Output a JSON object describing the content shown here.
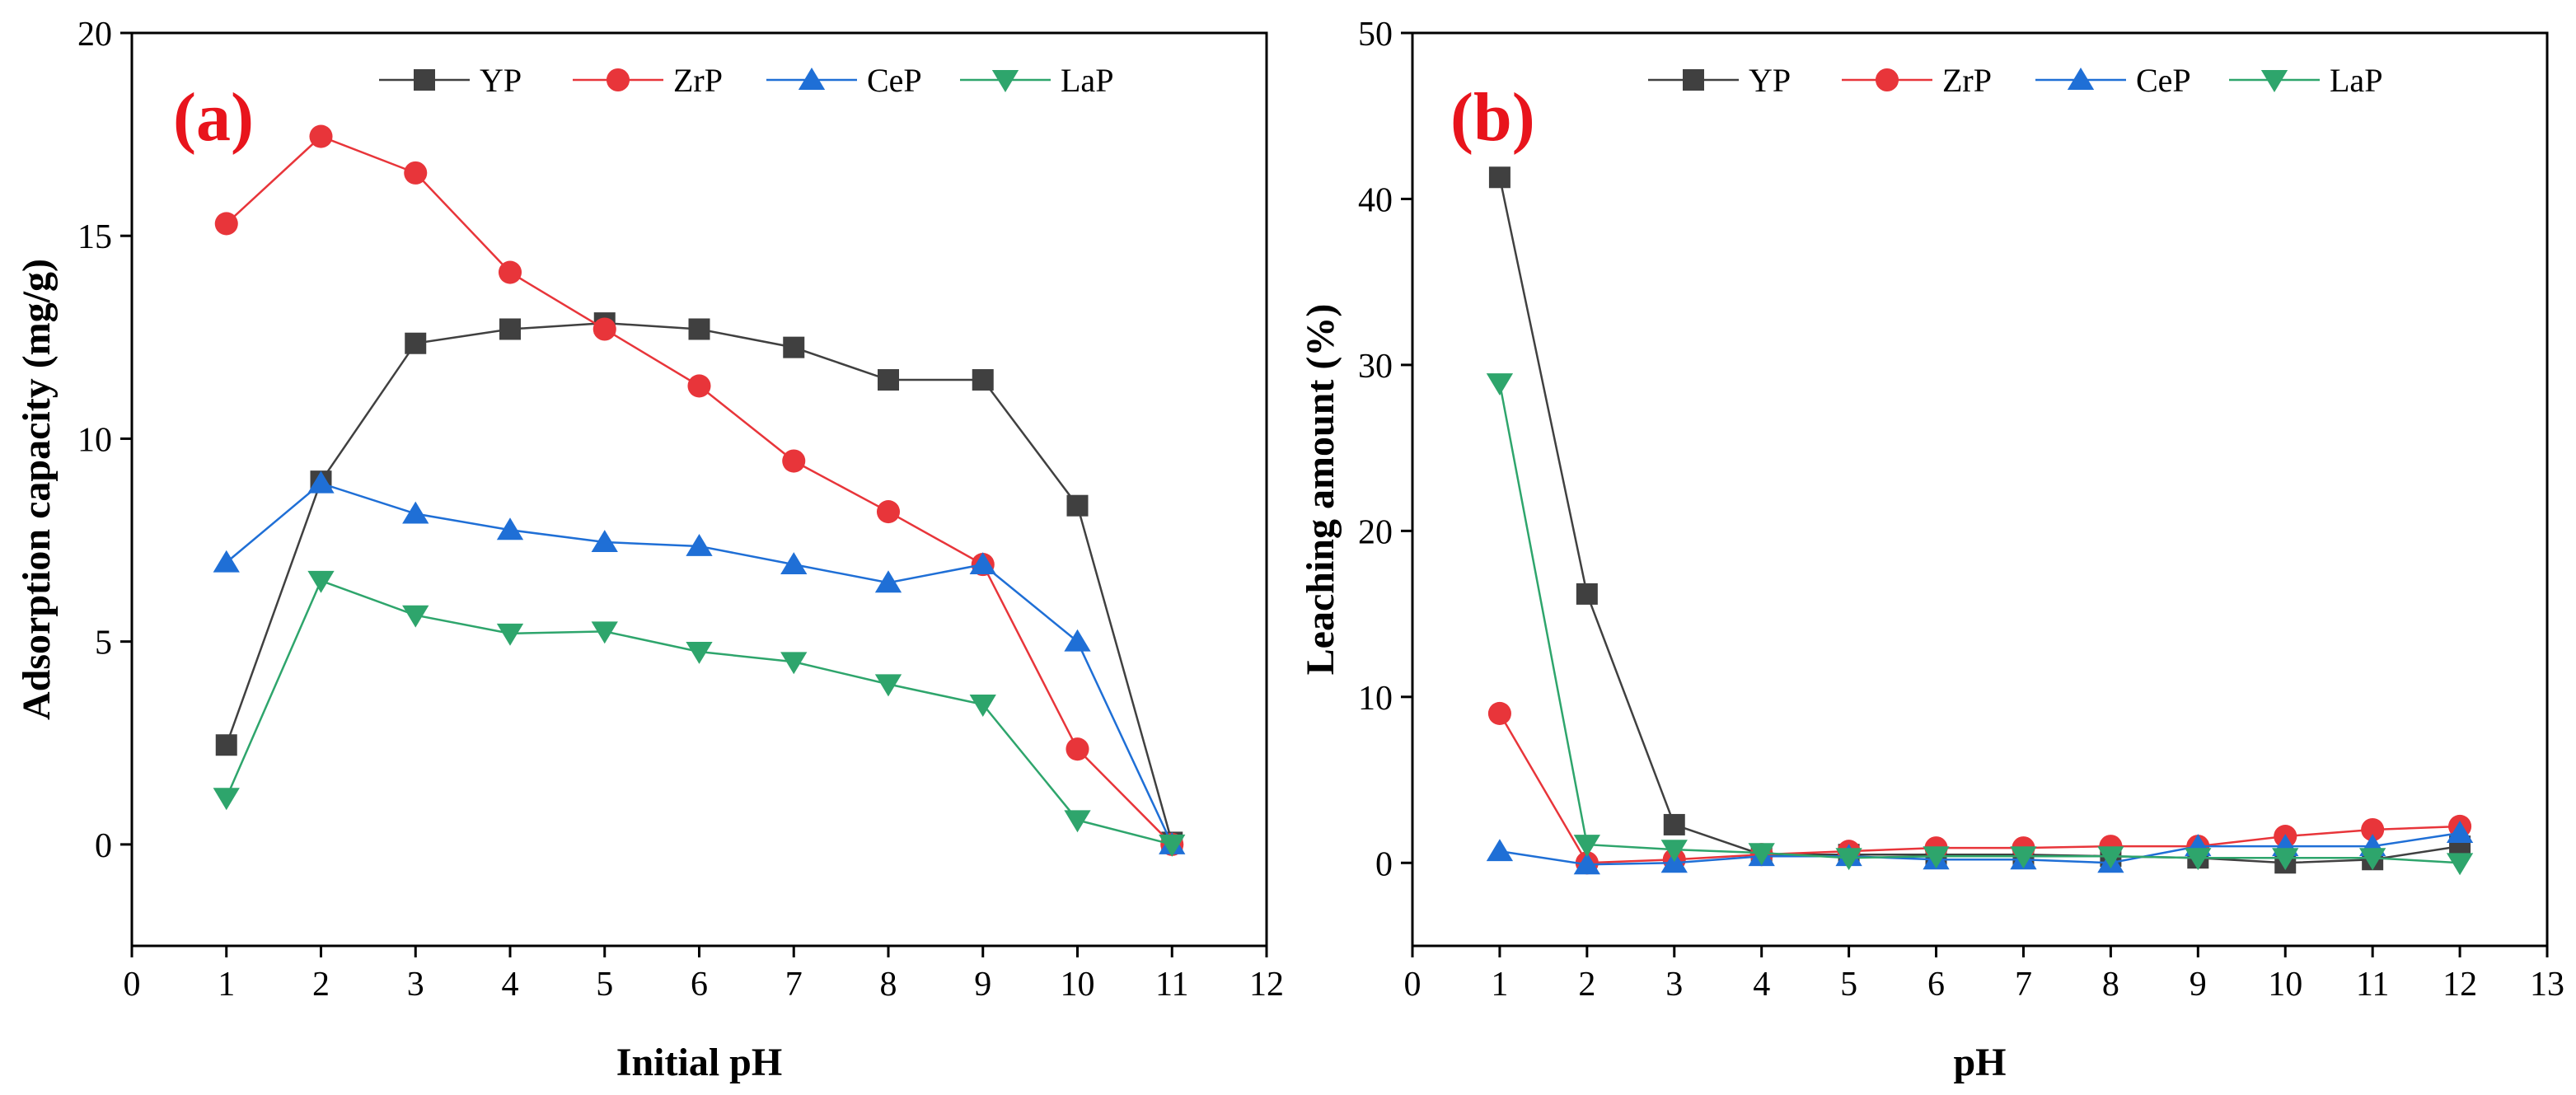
{
  "chart_data": [
    {
      "type": "line",
      "panel_label": "(a)",
      "xlabel": "Initial pH",
      "ylabel": "Adsorption capacity (mg/g)",
      "xlim": [
        0,
        12
      ],
      "ylim": [
        -2.5,
        20
      ],
      "xticks": [
        0,
        1,
        2,
        3,
        4,
        5,
        6,
        7,
        8,
        9,
        10,
        11,
        12
      ],
      "yticks": [
        0,
        5,
        10,
        15,
        20
      ],
      "legend": "top-center",
      "x": [
        1,
        2,
        3,
        4,
        5,
        6,
        7,
        8,
        9,
        10,
        11
      ],
      "series": [
        {
          "name": "YP",
          "marker": "square",
          "color": "#404040",
          "line_color": "#404040",
          "values": [
            2.45,
            8.95,
            12.35,
            12.7,
            12.85,
            12.7,
            12.25,
            11.45,
            11.45,
            8.35,
            0.05
          ]
        },
        {
          "name": "ZrP",
          "marker": "circle",
          "color": "#e8353a",
          "line_color": "#e8353a",
          "values": [
            15.3,
            17.45,
            16.55,
            14.1,
            12.7,
            11.3,
            9.45,
            8.2,
            6.9,
            2.35,
            0.0
          ]
        },
        {
          "name": "CeP",
          "marker": "triangle-up",
          "color": "#1f6fd6",
          "line_color": "#1f6fd6",
          "values": [
            6.95,
            8.9,
            8.15,
            7.75,
            7.45,
            7.35,
            6.9,
            6.45,
            6.9,
            5.0,
            0.0
          ]
        },
        {
          "name": "LaP",
          "marker": "triangle-down",
          "color": "#2ea56c",
          "line_color": "#2ea56c",
          "values": [
            1.15,
            6.5,
            5.65,
            5.2,
            5.25,
            4.75,
            4.5,
            3.95,
            3.45,
            0.6,
            0.0
          ]
        }
      ]
    },
    {
      "type": "line",
      "panel_label": "(b)",
      "xlabel": "pH",
      "ylabel": "Leaching amount (%)",
      "xlim": [
        0,
        13
      ],
      "ylim": [
        -5,
        50
      ],
      "xticks": [
        0,
        1,
        2,
        3,
        4,
        5,
        6,
        7,
        8,
        9,
        10,
        11,
        12,
        13
      ],
      "yticks": [
        0,
        10,
        20,
        30,
        40,
        50
      ],
      "legend": "top-center",
      "x": [
        1,
        2,
        3,
        4,
        5,
        6,
        7,
        8,
        9,
        10,
        11,
        12
      ],
      "series": [
        {
          "name": "YP",
          "marker": "square",
          "color": "#404040",
          "line_color": "#404040",
          "values": [
            41.3,
            16.2,
            2.3,
            0.5,
            0.5,
            0.5,
            0.5,
            0.4,
            0.3,
            0.0,
            0.2,
            1.0
          ]
        },
        {
          "name": "ZrP",
          "marker": "circle",
          "color": "#e8353a",
          "line_color": "#e8353a",
          "values": [
            9.0,
            0.0,
            0.2,
            0.5,
            0.7,
            0.9,
            0.9,
            1.0,
            1.0,
            1.6,
            2.0,
            2.2
          ]
        },
        {
          "name": "CeP",
          "marker": "triangle-up",
          "color": "#1f6fd6",
          "line_color": "#1f6fd6",
          "values": [
            0.7,
            -0.1,
            0.0,
            0.4,
            0.4,
            0.2,
            0.2,
            0.0,
            1.0,
            1.0,
            1.0,
            1.8
          ]
        },
        {
          "name": "LaP",
          "marker": "triangle-down",
          "color": "#2ea56c",
          "line_color": "#2ea56c",
          "values": [
            28.9,
            1.1,
            0.8,
            0.6,
            0.3,
            0.4,
            0.4,
            0.4,
            0.3,
            0.3,
            0.3,
            0.0
          ]
        }
      ]
    }
  ],
  "panel_label_color": "#e8141c"
}
